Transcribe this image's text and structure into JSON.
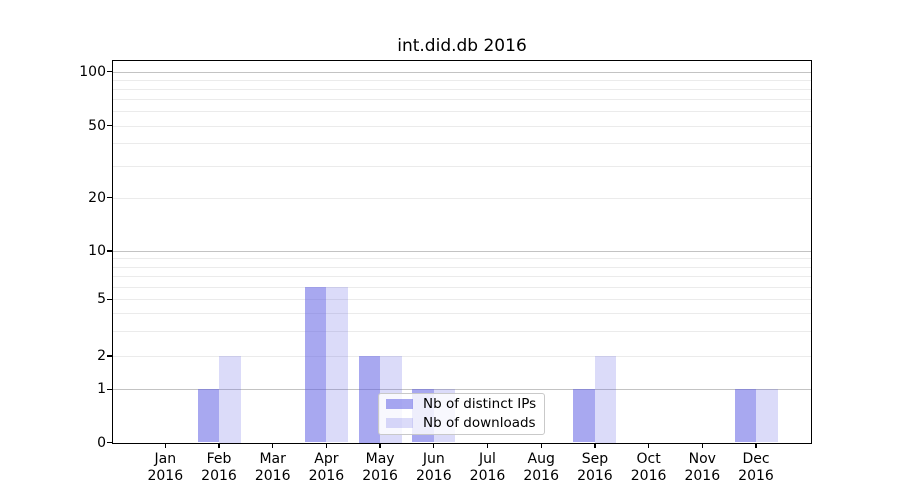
{
  "title": "int.did.db 2016",
  "chart_data": {
    "type": "bar",
    "title": "int.did.db 2016",
    "categories": [
      "Jan 2016",
      "Feb 2016",
      "Mar 2016",
      "Apr 2016",
      "May 2016",
      "Jun 2016",
      "Jul 2016",
      "Aug 2016",
      "Sep 2016",
      "Oct 2016",
      "Nov 2016",
      "Dec 2016"
    ],
    "series": [
      {
        "name": "Nb of distinct IPs",
        "values": [
          0,
          1,
          0,
          6,
          2,
          1,
          0,
          0,
          1,
          0,
          0,
          1
        ],
        "color": "#a7a7f0"
      },
      {
        "name": "Nb of downloads",
        "values": [
          0,
          2,
          0,
          6,
          2,
          1,
          0,
          0,
          2,
          0,
          0,
          1
        ],
        "color": "#dbdbf9"
      }
    ],
    "yticks": [
      0,
      1,
      2,
      5,
      10,
      20,
      50,
      100
    ],
    "yscale": "symlog",
    "ylim": [
      0,
      115
    ],
    "xlabel": "",
    "ylabel": "",
    "grid": true,
    "legend_position": "lower center"
  },
  "colors": {
    "distinct_ips_bar": "rgba(90,90,226,0.53)",
    "downloads_bar": "rgba(90,90,226,0.22)",
    "grid_major": "#c3c3c3",
    "grid_minor": "#ebebeb",
    "spine": "#000000",
    "background": "#ffffff"
  }
}
